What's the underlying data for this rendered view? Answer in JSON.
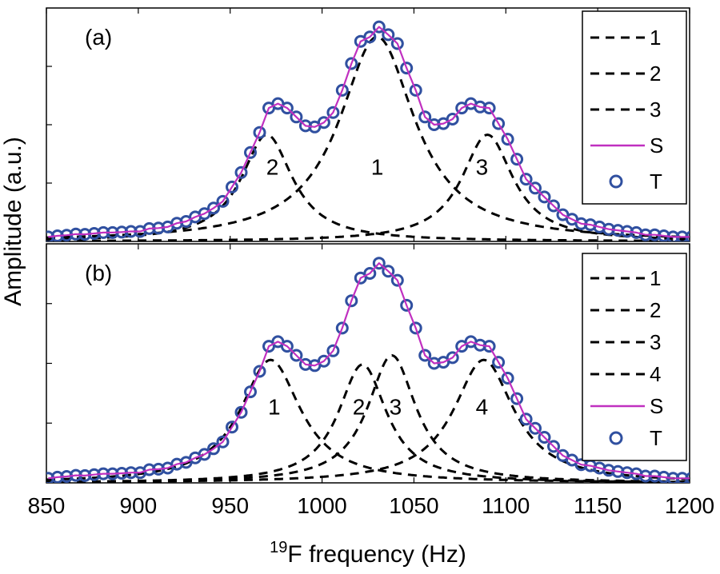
{
  "chart_data": {
    "type": "line",
    "xlabel_sup": "19",
    "xlabel_main": "F frequency (Hz)",
    "ylabel": "Amplitude (a.u.)",
    "xlim": [
      850,
      1200
    ],
    "xticks": [
      "850",
      "900",
      "950",
      "1000",
      "1050",
      "1100",
      "1150",
      "1200"
    ],
    "ylim": [
      0,
      1.05
    ],
    "colors": {
      "fit": "#c030c0",
      "data": "#3050a0",
      "component": "#000000"
    },
    "measured_points": {
      "x": [
        851,
        856,
        861,
        866,
        871,
        876,
        881,
        886,
        891,
        896,
        901,
        906,
        911,
        916,
        921,
        926,
        931,
        936,
        941,
        946,
        951,
        956,
        961,
        966,
        971,
        976,
        981,
        986,
        991,
        996,
        1001,
        1006,
        1011,
        1016,
        1021,
        1026,
        1031,
        1036,
        1041,
        1046,
        1051,
        1056,
        1061,
        1066,
        1071,
        1076,
        1081,
        1086,
        1091,
        1096,
        1101,
        1106,
        1111,
        1116,
        1121,
        1126,
        1131,
        1136,
        1141,
        1146,
        1151,
        1156,
        1161,
        1166,
        1171,
        1176,
        1181,
        1186,
        1191,
        1196,
        1201
      ],
      "y": [
        0.02,
        0.025,
        0.028,
        0.033,
        0.032,
        0.036,
        0.04,
        0.04,
        0.042,
        0.045,
        0.045,
        0.058,
        0.06,
        0.065,
        0.082,
        0.09,
        0.11,
        0.125,
        0.15,
        0.18,
        0.245,
        0.31,
        0.4,
        0.49,
        0.6,
        0.62,
        0.6,
        0.56,
        0.52,
        0.515,
        0.535,
        0.58,
        0.68,
        0.8,
        0.9,
        0.92,
        0.965,
        0.93,
        0.89,
        0.78,
        0.68,
        0.56,
        0.525,
        0.53,
        0.55,
        0.6,
        0.62,
        0.605,
        0.6,
        0.53,
        0.46,
        0.37,
        0.28,
        0.24,
        0.2,
        0.16,
        0.12,
        0.1,
        0.08,
        0.075,
        0.065,
        0.055,
        0.05,
        0.045,
        0.04,
        0.03,
        0.03,
        0.025,
        0.02,
        0.02,
        0.02
      ]
    },
    "panels": [
      {
        "label": "(a)",
        "components": [
          {
            "name": "1",
            "center": 1030,
            "amplitude": 0.92,
            "width": 25
          },
          {
            "name": "2",
            "center": 970,
            "amplitude": 0.48,
            "width": 17
          },
          {
            "name": "3",
            "center": 1090,
            "amplitude": 0.48,
            "width": 17
          }
        ],
        "peak_labels": [
          {
            "text": "2",
            "x": 973,
            "y": 0.3
          },
          {
            "text": "1",
            "x": 1030,
            "y": 0.3
          },
          {
            "text": "3",
            "x": 1087,
            "y": 0.3
          }
        ],
        "legend": [
          "1",
          "2",
          "3",
          "S",
          "T"
        ]
      },
      {
        "label": "(b)",
        "components": [
          {
            "name": "1",
            "center": 972,
            "amplitude": 0.54,
            "width": 20
          },
          {
            "name": "2",
            "center": 1022,
            "amplitude": 0.52,
            "width": 16
          },
          {
            "name": "3",
            "center": 1038,
            "amplitude": 0.56,
            "width": 16
          },
          {
            "name": "4",
            "center": 1088,
            "amplitude": 0.54,
            "width": 20
          }
        ],
        "peak_labels": [
          {
            "text": "1",
            "x": 974,
            "y": 0.3
          },
          {
            "text": "2",
            "x": 1020,
            "y": 0.3
          },
          {
            "text": "3",
            "x": 1040,
            "y": 0.3
          },
          {
            "text": "4",
            "x": 1087,
            "y": 0.3
          }
        ],
        "legend": [
          "1",
          "2",
          "3",
          "4",
          "S",
          "T"
        ]
      }
    ]
  }
}
